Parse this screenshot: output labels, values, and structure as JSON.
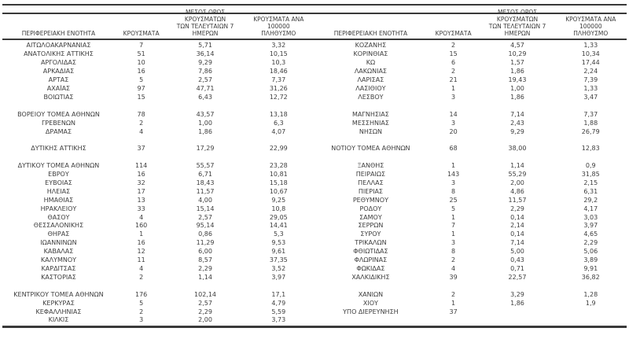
{
  "colors": {
    "text": "#3d3d3d",
    "rule": "#3a3a3a",
    "background": "#ffffff"
  },
  "header": {
    "col_region": "ΠΕΡΙΦΕΡΕΙΑΚΗ ΕΝΟΤΗΤΑ",
    "col_cases": "ΚΡΟΥΣΜΑΤΑ",
    "col_avg7": "ΜΕΣΟΣ ΟΡΟΣ ΚΡΟΥΣΜΑΤΩΝ\nΤΩΝ ΤΕΛΕΥΤΑΙΩΝ 7\nΗΜΕΡΩΝ",
    "col_per100k": "ΚΡΟΥΣΜΑΤΑ ΑΝΑ 100000\nΠΛΗΘΥΣΜΟ"
  },
  "left_table": {
    "rows": [
      {
        "region": "ΑΙΤΩΛΟΑΚΑΡΝΑΝΙΑΣ",
        "cases": "7",
        "avg7": "5,71",
        "per100k": "3,32"
      },
      {
        "region": "ΑΝΑΤΟΛΙΚΗΣ ΑΤΤΙΚΗΣ",
        "cases": "51",
        "avg7": "36,14",
        "per100k": "10,15"
      },
      {
        "region": "ΑΡΓΟΛΙΔΑΣ",
        "cases": "10",
        "avg7": "9,29",
        "per100k": "10,3"
      },
      {
        "region": "ΑΡΚΑΔΙΑΣ",
        "cases": "16",
        "avg7": "7,86",
        "per100k": "18,46"
      },
      {
        "region": "ΑΡΤΑΣ",
        "cases": "5",
        "avg7": "2,57",
        "per100k": "7,37"
      },
      {
        "region": "ΑΧΑΪΑΣ",
        "cases": "97",
        "avg7": "47,71",
        "per100k": "31,26"
      },
      {
        "region": "ΒΟΙΩΤΙΑΣ",
        "cases": "15",
        "avg7": "6,43",
        "per100k": "12,72"
      },
      {
        "region": "",
        "cases": "",
        "avg7": "",
        "per100k": ""
      },
      {
        "region": "ΒΟΡΕΙΟΥ ΤΟΜΕΑ ΑΘΗΝΩΝ",
        "cases": "78",
        "avg7": "43,57",
        "per100k": "13,18"
      },
      {
        "region": "ΓΡΕΒΕΝΩΝ",
        "cases": "2",
        "avg7": "1,00",
        "per100k": "6,3"
      },
      {
        "region": "ΔΡΑΜΑΣ",
        "cases": "4",
        "avg7": "1,86",
        "per100k": "4,07"
      },
      {
        "region": "",
        "cases": "",
        "avg7": "",
        "per100k": ""
      },
      {
        "region": "ΔΥΤΙΚΗΣ ΑΤΤΙΚΗΣ",
        "cases": "37",
        "avg7": "17,29",
        "per100k": "22,99"
      },
      {
        "region": "",
        "cases": "",
        "avg7": "",
        "per100k": ""
      },
      {
        "region": "ΔΥΤΙΚΟΥ ΤΟΜΕΑ ΑΘΗΝΩΝ",
        "cases": "114",
        "avg7": "55,57",
        "per100k": "23,28"
      },
      {
        "region": "ΕΒΡΟΥ",
        "cases": "16",
        "avg7": "6,71",
        "per100k": "10,81"
      },
      {
        "region": "ΕΥΒΟΙΑΣ",
        "cases": "32",
        "avg7": "18,43",
        "per100k": "15,18"
      },
      {
        "region": "ΗΛΕΙΑΣ",
        "cases": "17",
        "avg7": "11,57",
        "per100k": "10,67"
      },
      {
        "region": "ΗΜΑΘΙΑΣ",
        "cases": "13",
        "avg7": "4,00",
        "per100k": "9,25"
      },
      {
        "region": "ΗΡΑΚΛΕΙΟΥ",
        "cases": "33",
        "avg7": "15,14",
        "per100k": "10,8"
      },
      {
        "region": "ΘΑΣΟΥ",
        "cases": "4",
        "avg7": "2,57",
        "per100k": "29,05"
      },
      {
        "region": "ΘΕΣΣΑΛΟΝΙΚΗΣ",
        "cases": "160",
        "avg7": "95,14",
        "per100k": "14,41"
      },
      {
        "region": "ΘΗΡΑΣ",
        "cases": "1",
        "avg7": "0,86",
        "per100k": "5,3"
      },
      {
        "region": "ΙΩΑΝΝΙΝΩΝ",
        "cases": "16",
        "avg7": "11,29",
        "per100k": "9,53"
      },
      {
        "region": "ΚΑΒΑΛΑΣ",
        "cases": "12",
        "avg7": "6,00",
        "per100k": "9,61"
      },
      {
        "region": "ΚΑΛΥΜΝΟΥ",
        "cases": "11",
        "avg7": "8,57",
        "per100k": "37,35"
      },
      {
        "region": "ΚΑΡΔΙΤΣΑΣ",
        "cases": "4",
        "avg7": "2,29",
        "per100k": "3,52"
      },
      {
        "region": "ΚΑΣΤΟΡΙΑΣ",
        "cases": "2",
        "avg7": "1,14",
        "per100k": "3,97"
      },
      {
        "region": "",
        "cases": "",
        "avg7": "",
        "per100k": ""
      },
      {
        "region": "ΚΕΝΤΡΙΚΟΥ ΤΟΜΕΑ ΑΘΗΝΩΝ",
        "cases": "176",
        "avg7": "102,14",
        "per100k": "17,1"
      },
      {
        "region": "ΚΕΡΚΥΡΑΣ",
        "cases": "5",
        "avg7": "2,57",
        "per100k": "4,79"
      },
      {
        "region": "ΚΕΦΑΛΛΗΝΙΑΣ",
        "cases": "2",
        "avg7": "2,29",
        "per100k": "5,59"
      },
      {
        "region": "ΚΙΛΚΙΣ",
        "cases": "3",
        "avg7": "2,00",
        "per100k": "3,73"
      }
    ]
  },
  "right_table": {
    "rows": [
      {
        "region": "ΚΟΖΑΝΗΣ",
        "cases": "2",
        "avg7": "4,57",
        "per100k": "1,33"
      },
      {
        "region": "ΚΟΡΙΝΘΙΑΣ",
        "cases": "15",
        "avg7": "10,29",
        "per100k": "10,34"
      },
      {
        "region": "ΚΩ",
        "cases": "6",
        "avg7": "1,57",
        "per100k": "17,44"
      },
      {
        "region": "ΛΑΚΩΝΙΑΣ",
        "cases": "2",
        "avg7": "1,86",
        "per100k": "2,24"
      },
      {
        "region": "ΛΑΡΙΣΑΣ",
        "cases": "21",
        "avg7": "19,43",
        "per100k": "7,39"
      },
      {
        "region": "ΛΑΣΙΘΙΟΥ",
        "cases": "1",
        "avg7": "1,00",
        "per100k": "1,33"
      },
      {
        "region": "ΛΕΣΒΟΥ",
        "cases": "3",
        "avg7": "1,86",
        "per100k": "3,47"
      },
      {
        "region": "",
        "cases": "",
        "avg7": "",
        "per100k": ""
      },
      {
        "region": "ΜΑΓΝΗΣΙΑΣ",
        "cases": "14",
        "avg7": "7,14",
        "per100k": "7,37"
      },
      {
        "region": "ΜΕΣΣΗΝΙΑΣ",
        "cases": "3",
        "avg7": "2,43",
        "per100k": "1,88"
      },
      {
        "region": "ΝΗΣΩΝ",
        "cases": "20",
        "avg7": "9,29",
        "per100k": "26,79"
      },
      {
        "region": "",
        "cases": "",
        "avg7": "",
        "per100k": ""
      },
      {
        "region": "ΝΟΤΙΟΥ ΤΟΜΕΑ ΑΘΗΝΩΝ",
        "cases": "68",
        "avg7": "38,00",
        "per100k": "12,83"
      },
      {
        "region": "",
        "cases": "",
        "avg7": "",
        "per100k": ""
      },
      {
        "region": "ΞΑΝΘΗΣ",
        "cases": "1",
        "avg7": "1,14",
        "per100k": "0,9"
      },
      {
        "region": "ΠΕΙΡΑΙΩΣ",
        "cases": "143",
        "avg7": "55,29",
        "per100k": "31,85"
      },
      {
        "region": "ΠΕΛΛΑΣ",
        "cases": "3",
        "avg7": "2,00",
        "per100k": "2,15"
      },
      {
        "region": "ΠΙΕΡΙΑΣ",
        "cases": "8",
        "avg7": "4,86",
        "per100k": "6,31"
      },
      {
        "region": "ΡΕΘΥΜΝΟΥ",
        "cases": "25",
        "avg7": "11,57",
        "per100k": "29,2"
      },
      {
        "region": "ΡΟΔΟΥ",
        "cases": "5",
        "avg7": "2,29",
        "per100k": "4,17"
      },
      {
        "region": "ΣΑΜΟΥ",
        "cases": "1",
        "avg7": "0,14",
        "per100k": "3,03"
      },
      {
        "region": "ΣΕΡΡΩΝ",
        "cases": "7",
        "avg7": "2,14",
        "per100k": "3,97"
      },
      {
        "region": "ΣΥΡΟΥ",
        "cases": "1",
        "avg7": "0,14",
        "per100k": "4,65"
      },
      {
        "region": "ΤΡΙΚΑΛΩΝ",
        "cases": "3",
        "avg7": "7,14",
        "per100k": "2,29"
      },
      {
        "region": "ΦΘΙΩΤΙΔΑΣ",
        "cases": "8",
        "avg7": "5,00",
        "per100k": "5,06"
      },
      {
        "region": "ΦΛΩΡΙΝΑΣ",
        "cases": "2",
        "avg7": "0,43",
        "per100k": "3,89"
      },
      {
        "region": "ΦΩΚΙΔΑΣ",
        "cases": "4",
        "avg7": "0,71",
        "per100k": "9,91"
      },
      {
        "region": "ΧΑΛΚΙΔΙΚΗΣ",
        "cases": "39",
        "avg7": "22,57",
        "per100k": "36,82"
      },
      {
        "region": "",
        "cases": "",
        "avg7": "",
        "per100k": ""
      },
      {
        "region": "ΧΑΝΙΩΝ",
        "cases": "2",
        "avg7": "3,29",
        "per100k": "1,28"
      },
      {
        "region": "ΧΙΟΥ",
        "cases": "1",
        "avg7": "1,86",
        "per100k": "1,9"
      },
      {
        "region": "ΥΠΟ ΔΙΕΡΕΥΝΗΣΗ",
        "cases": "37",
        "avg7": "",
        "per100k": ""
      },
      {
        "region": "",
        "cases": "",
        "avg7": "",
        "per100k": ""
      }
    ]
  }
}
